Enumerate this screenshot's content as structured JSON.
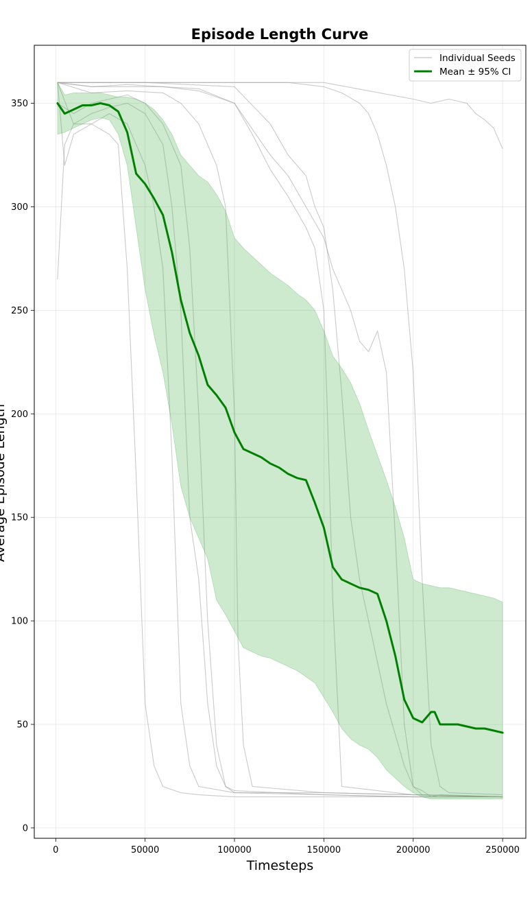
{
  "chart_data": {
    "type": "line",
    "title": "Episode Length Curve",
    "xlabel": "Timesteps",
    "ylabel": "Average Episode Length",
    "xlim": [
      -12000,
      263000
    ],
    "ylim": [
      -5,
      378
    ],
    "xticks": [
      0,
      50000,
      100000,
      150000,
      200000,
      250000
    ],
    "yticks": [
      0,
      50,
      100,
      150,
      200,
      250,
      300,
      350
    ],
    "grid": true,
    "legend": {
      "placement": "top-right",
      "entries": [
        "Individual Seeds",
        "Mean ± 95% CI"
      ]
    },
    "colors": {
      "mean": "#008000",
      "ci_fill": "#4caf50",
      "seeds": "#9e9e9e"
    },
    "mean": {
      "name": "Mean ± 95% CI",
      "x": [
        1000,
        5000,
        10000,
        15000,
        20000,
        25000,
        30000,
        35000,
        40000,
        45000,
        50000,
        55000,
        60000,
        65000,
        70000,
        75000,
        80000,
        85000,
        90000,
        95000,
        100000,
        105000,
        110000,
        115000,
        120000,
        125000,
        130000,
        135000,
        140000,
        145000,
        150000,
        155000,
        160000,
        165000,
        170000,
        175000,
        180000,
        185000,
        190000,
        195000,
        200000,
        205000,
        210000,
        212000,
        215000,
        220000,
        225000,
        230000,
        235000,
        240000,
        245000,
        250000
      ],
      "y": [
        350,
        345,
        347,
        349,
        349,
        350,
        349,
        346,
        336,
        316,
        311,
        304,
        296,
        278,
        255,
        239,
        228,
        214,
        209,
        203,
        191,
        183,
        181,
        179,
        176,
        174,
        171,
        169,
        168,
        157,
        145,
        126,
        120,
        118,
        116,
        115,
        113,
        100,
        83,
        62,
        53,
        51,
        56,
        56,
        50,
        50,
        50,
        49,
        48,
        48,
        47,
        46
      ]
    },
    "ci": {
      "x": [
        1000,
        5000,
        10000,
        15000,
        20000,
        25000,
        30000,
        35000,
        40000,
        45000,
        50000,
        55000,
        60000,
        65000,
        70000,
        75000,
        80000,
        85000,
        90000,
        95000,
        100000,
        105000,
        110000,
        115000,
        120000,
        125000,
        130000,
        135000,
        140000,
        145000,
        150000,
        155000,
        160000,
        165000,
        170000,
        175000,
        180000,
        185000,
        190000,
        195000,
        200000,
        205000,
        210000,
        215000,
        220000,
        225000,
        230000,
        235000,
        240000,
        245000,
        250000
      ],
      "upper": [
        360,
        354,
        355,
        355,
        355,
        355,
        354,
        353,
        353,
        352,
        350,
        347,
        342,
        335,
        325,
        320,
        315,
        312,
        306,
        298,
        285,
        280,
        276,
        272,
        268,
        265,
        262,
        258,
        255,
        250,
        240,
        228,
        222,
        215,
        205,
        192,
        180,
        168,
        155,
        140,
        120,
        118,
        117,
        116,
        116,
        115,
        114,
        113,
        112,
        111,
        109
      ],
      "lower": [
        335,
        336,
        338,
        340,
        342,
        343,
        342,
        335,
        320,
        290,
        260,
        238,
        220,
        195,
        165,
        150,
        140,
        130,
        110,
        103,
        95,
        87,
        85,
        83,
        82,
        80,
        78,
        76,
        73,
        70,
        63,
        56,
        48,
        43,
        40,
        38,
        34,
        28,
        24,
        20,
        17,
        15,
        14,
        14,
        14,
        14,
        14,
        14,
        14,
        14,
        14
      ]
    },
    "seeds": [
      {
        "x": [
          1000,
          5000,
          10000,
          20000,
          30000,
          35000,
          40000,
          45000,
          50000,
          55000,
          60000,
          70000,
          80000,
          100000,
          150000,
          200000,
          250000
        ],
        "y": [
          265,
          330,
          340,
          340,
          335,
          330,
          270,
          170,
          60,
          30,
          20,
          17,
          16,
          15,
          15,
          15,
          15
        ]
      },
      {
        "x": [
          1000,
          5000,
          10000,
          20000,
          30000,
          40000,
          50000,
          55000,
          60000,
          65000,
          70000,
          75000,
          80000,
          100000,
          150000,
          200000,
          250000
        ],
        "y": [
          360,
          320,
          335,
          340,
          345,
          340,
          320,
          300,
          270,
          180,
          60,
          30,
          20,
          17,
          16,
          15,
          15
        ]
      },
      {
        "x": [
          1000,
          10000,
          20000,
          30000,
          40000,
          50000,
          60000,
          65000,
          70000,
          75000,
          80000,
          85000,
          90000,
          95000,
          100000,
          150000,
          200000,
          250000
        ],
        "y": [
          360,
          340,
          345,
          348,
          350,
          345,
          330,
          300,
          250,
          150,
          120,
          60,
          30,
          20,
          18,
          16,
          15,
          15
        ]
      },
      {
        "x": [
          1000,
          10000,
          20000,
          30000,
          40000,
          50000,
          60000,
          70000,
          75000,
          80000,
          85000,
          90000,
          95000,
          100000,
          150000,
          200000,
          250000
        ],
        "y": [
          350,
          345,
          350,
          352,
          354,
          350,
          340,
          320,
          280,
          200,
          100,
          40,
          20,
          17,
          17,
          16,
          15
        ]
      },
      {
        "x": [
          1000,
          20000,
          40000,
          60000,
          70000,
          80000,
          90000,
          95000,
          100000,
          102000,
          105000,
          110000,
          150000,
          200000,
          250000
        ],
        "y": [
          360,
          355,
          356,
          355,
          350,
          340,
          320,
          300,
          200,
          90,
          40,
          20,
          17,
          16,
          15
        ]
      },
      {
        "x": [
          1000,
          20000,
          40000,
          60000,
          80000,
          100000,
          110000,
          120000,
          130000,
          140000,
          145000,
          150000,
          152000,
          155000,
          160000,
          200000,
          250000
        ],
        "y": [
          360,
          358,
          358,
          358,
          356,
          350,
          335,
          318,
          305,
          290,
          280,
          250,
          200,
          110,
          20,
          16,
          15
        ]
      },
      {
        "x": [
          1000,
          20000,
          40000,
          60000,
          80000,
          100000,
          120000,
          130000,
          140000,
          150000,
          155000,
          160000,
          165000,
          170000,
          175000,
          180000,
          185000,
          190000,
          195000,
          200000,
          205000,
          250000
        ],
        "y": [
          360,
          358,
          359,
          358,
          357,
          350,
          325,
          315,
          300,
          285,
          270,
          260,
          250,
          235,
          230,
          240,
          220,
          140,
          50,
          20,
          16,
          15
        ]
      },
      {
        "x": [
          1000,
          50000,
          100000,
          120000,
          130000,
          140000,
          145000,
          150000,
          155000,
          160000,
          165000,
          170000,
          175000,
          180000,
          185000,
          190000,
          195000,
          200000,
          205000,
          210000,
          215000,
          250000
        ],
        "y": [
          360,
          360,
          358,
          340,
          325,
          315,
          300,
          290,
          260,
          210,
          150,
          120,
          100,
          80,
          60,
          45,
          30,
          20,
          18,
          15,
          16,
          15
        ]
      },
      {
        "x": [
          1000,
          50000,
          100000,
          130000,
          140000,
          150000,
          160000,
          170000,
          175000,
          180000,
          185000,
          190000,
          195000,
          200000,
          205000,
          210000,
          215000,
          220000,
          250000
        ],
        "y": [
          360,
          360,
          360,
          360,
          359,
          358,
          355,
          350,
          345,
          335,
          320,
          300,
          270,
          220,
          120,
          40,
          20,
          17,
          16
        ]
      },
      {
        "x": [
          1000,
          50000,
          100000,
          150000,
          200000,
          210000,
          220000,
          230000,
          235000,
          240000,
          245000,
          250000
        ],
        "y": [
          360,
          360,
          360,
          360,
          352,
          350,
          352,
          350,
          345,
          342,
          338,
          328
        ]
      }
    ]
  }
}
